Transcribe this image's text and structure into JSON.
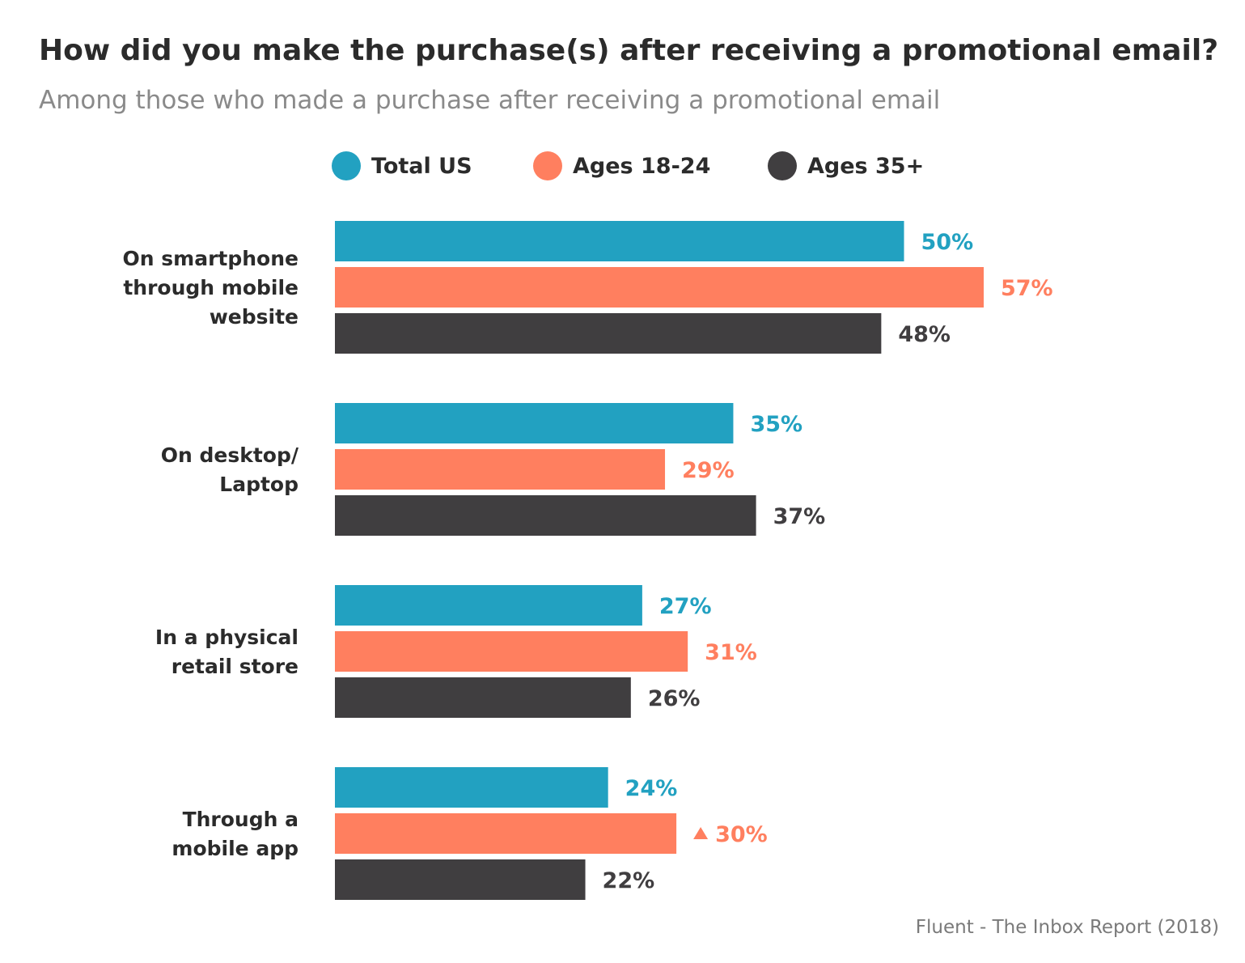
{
  "chart_data": {
    "type": "bar",
    "orientation": "horizontal",
    "title": "How did you make the purchase(s) after receiving a promotional email?",
    "subtitle": "Among those who made a purchase after receiving a promotional email",
    "source": "Fluent - The Inbox Report (2018)",
    "categories": [
      [
        "On smartphone",
        "through mobile",
        "website"
      ],
      [
        "On desktop/",
        "Laptop"
      ],
      [
        "In a physical",
        "retail store"
      ],
      [
        "Through a",
        "mobile app"
      ]
    ],
    "series": [
      {
        "name": "Total US",
        "color": "#22a1c1",
        "values": [
          50,
          35,
          27,
          24
        ],
        "labels": [
          "50%",
          "35%",
          "27%",
          "24%"
        ]
      },
      {
        "name": "Ages 18-24",
        "color": "#ff7f5f",
        "values": [
          57,
          29,
          31,
          30
        ],
        "labels": [
          "57%",
          "29%",
          "31%",
          "30%"
        ]
      },
      {
        "name": "Ages 35+",
        "color": "#403e40",
        "values": [
          48,
          37,
          26,
          22
        ],
        "labels": [
          "48%",
          "37%",
          "26%",
          "22%"
        ]
      }
    ],
    "annotations": [
      {
        "series": 1,
        "category": 3,
        "marker": "up-triangle"
      }
    ],
    "legend_position": "top",
    "grid": false
  }
}
